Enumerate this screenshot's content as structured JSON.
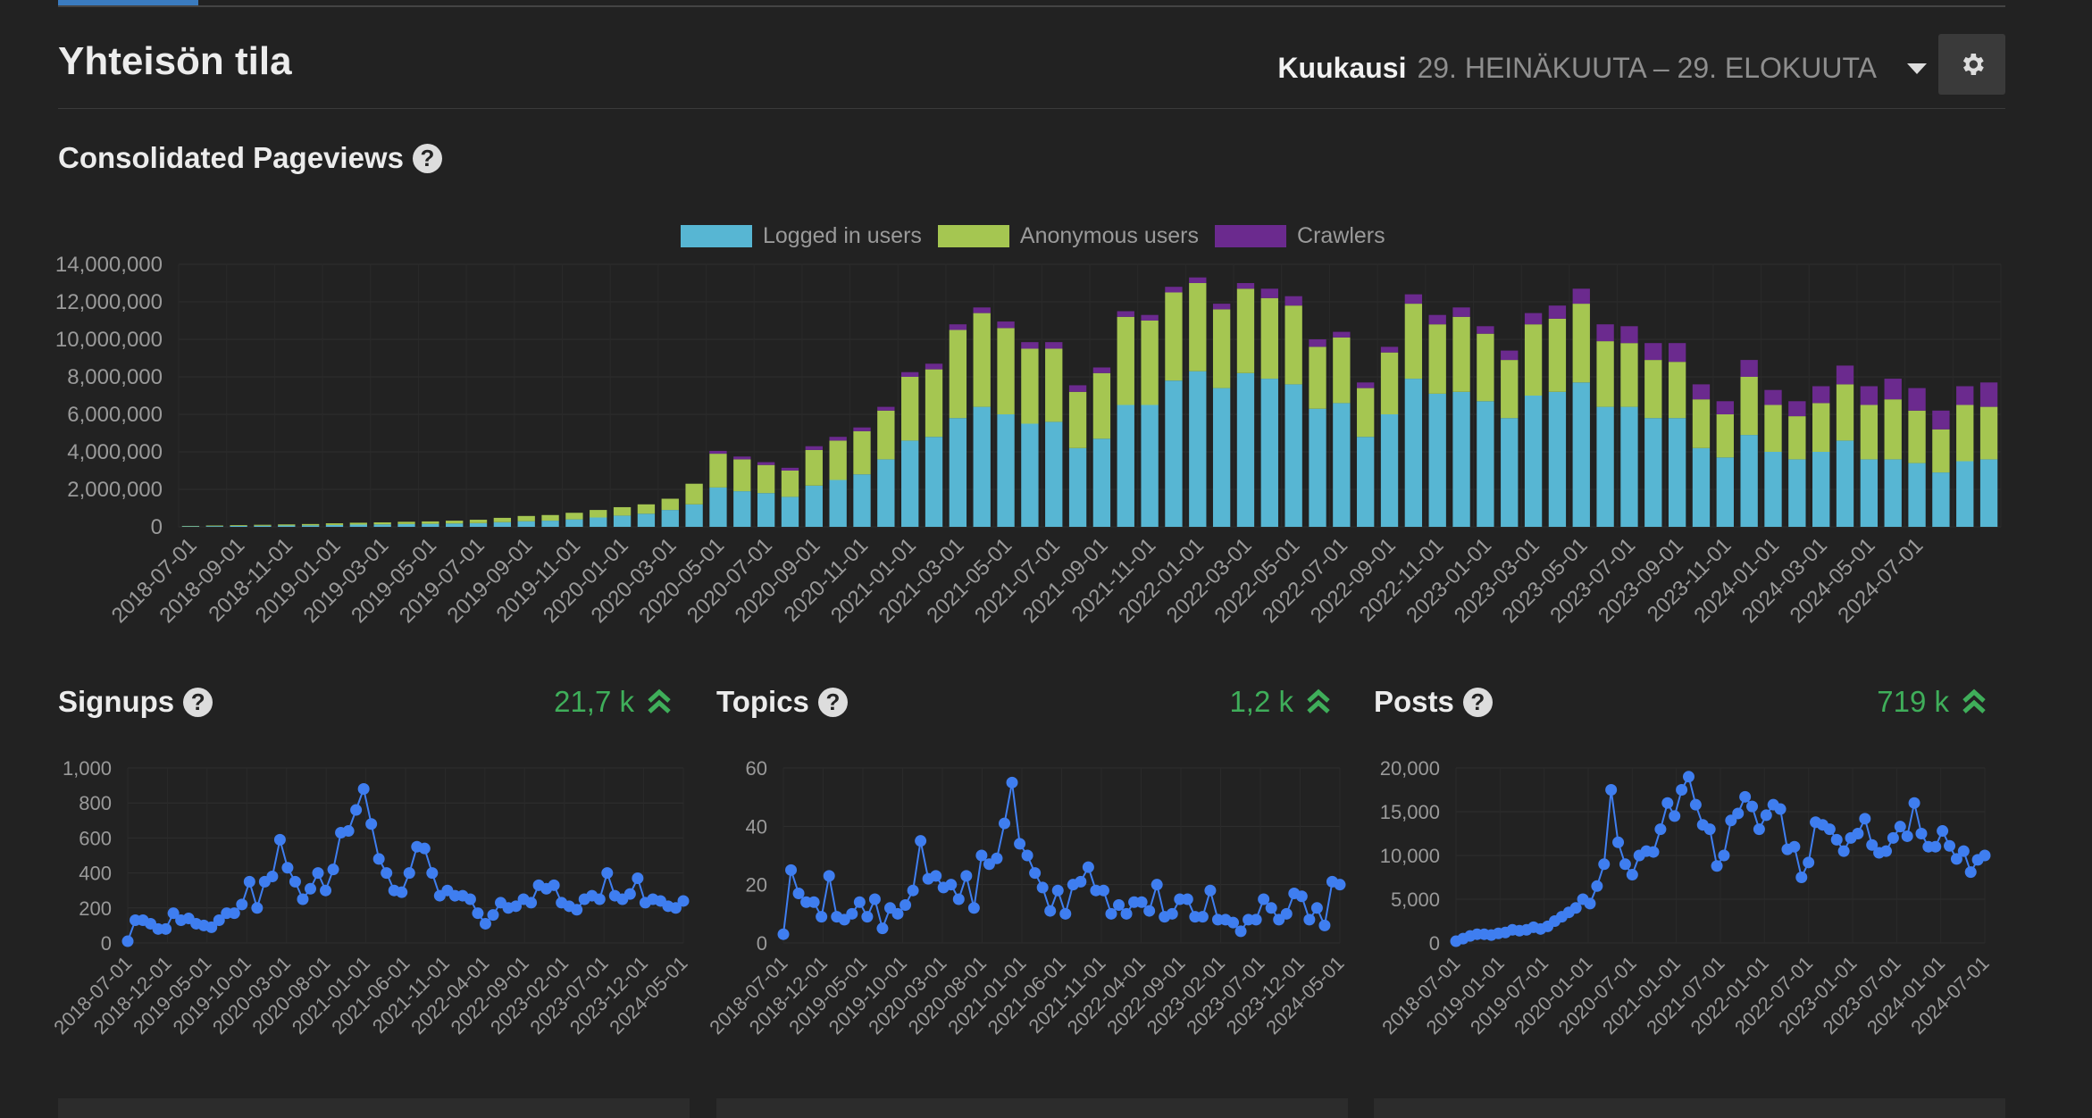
{
  "nav": {
    "active_tab": ""
  },
  "header": {
    "title": "Yhteisön tila",
    "period_label": "Kuukausi",
    "period_range": "29. HEINÄKUUTA – 29. ELOKUUTA",
    "settings_icon": "gear-icon"
  },
  "pageviews": {
    "title": "Consolidated Pageviews",
    "chart_data": {
      "type": "bar",
      "stacked": true,
      "title": "Consolidated Pageviews",
      "legend_position": "top",
      "grid": true,
      "ylim": [
        0,
        14000000
      ],
      "y_ticks": [
        "14,000,000",
        "12,000,000",
        "10,000,000",
        "8,000,000",
        "6,000,000",
        "4,000,000",
        "2,000,000",
        "0"
      ],
      "x_tick_labels": [
        "2018-07-01",
        "2018-09-01",
        "2018-11-01",
        "2019-01-01",
        "2019-03-01",
        "2019-05-01",
        "2019-07-01",
        "2019-09-01",
        "2019-11-01",
        "2020-01-01",
        "2020-03-01",
        "2020-05-01",
        "2020-07-01",
        "2020-09-01",
        "2020-11-01",
        "2021-01-01",
        "2021-03-01",
        "2021-05-01",
        "2021-07-01",
        "2021-09-01",
        "2021-11-01",
        "2022-01-01",
        "2022-03-01",
        "2022-05-01",
        "2022-07-01",
        "2022-09-01",
        "2022-11-01",
        "2023-01-01",
        "2023-03-01",
        "2023-05-01",
        "2023-07-01",
        "2023-09-01",
        "2023-11-01",
        "2024-01-01",
        "2024-03-01",
        "2024-05-01",
        "2024-07-01"
      ],
      "series": [
        {
          "name": "Logged in users",
          "color": "#57b6d3",
          "values": [
            30000,
            40000,
            50000,
            60000,
            70000,
            80000,
            100000,
            120000,
            130000,
            150000,
            160000,
            180000,
            200000,
            250000,
            300000,
            330000,
            400000,
            500000,
            600000,
            700000,
            900000,
            1200000,
            2100000,
            1900000,
            1800000,
            1600000,
            2200000,
            2500000,
            2800000,
            3600000,
            4600000,
            4800000,
            5800000,
            6400000,
            6000000,
            5500000,
            5600000,
            4200000,
            4700000,
            6500000,
            6500000,
            7800000,
            8300000,
            7400000,
            8200000,
            7900000,
            7600000,
            6300000,
            6600000,
            4800000,
            6000000,
            7900000,
            7100000,
            7200000,
            6700000,
            5800000,
            7000000,
            7200000,
            7700000,
            6400000,
            6400000,
            5800000,
            5800000,
            4200000,
            3700000,
            4900000,
            4000000,
            3600000,
            4000000,
            4600000,
            3600000,
            3600000,
            3400000,
            2900000,
            3500000,
            3600000
          ]
        },
        {
          "name": "Anonymous users",
          "color": "#a5c651",
          "values": [
            20000,
            30000,
            40000,
            50000,
            60000,
            70000,
            90000,
            100000,
            110000,
            120000,
            130000,
            150000,
            180000,
            230000,
            280000,
            300000,
            350000,
            400000,
            450000,
            500000,
            600000,
            1100000,
            1800000,
            1700000,
            1500000,
            1400000,
            1900000,
            2100000,
            2300000,
            2600000,
            3400000,
            3600000,
            4700000,
            5000000,
            4600000,
            4000000,
            3900000,
            3000000,
            3500000,
            4700000,
            4500000,
            4700000,
            4700000,
            4200000,
            4500000,
            4300000,
            4200000,
            3300000,
            3500000,
            2600000,
            3300000,
            4000000,
            3700000,
            4000000,
            3600000,
            3100000,
            3800000,
            3900000,
            4200000,
            3500000,
            3400000,
            3100000,
            3000000,
            2600000,
            2300000,
            3100000,
            2500000,
            2300000,
            2600000,
            3000000,
            2900000,
            3200000,
            2800000,
            2300000,
            3000000,
            2800000
          ]
        },
        {
          "name": "Crawlers",
          "color": "#6b2a8e",
          "values": [
            0,
            0,
            0,
            0,
            0,
            0,
            0,
            0,
            0,
            0,
            0,
            0,
            0,
            0,
            0,
            0,
            0,
            0,
            0,
            0,
            0,
            0,
            150000,
            150000,
            150000,
            150000,
            200000,
            200000,
            200000,
            200000,
            250000,
            300000,
            300000,
            300000,
            350000,
            350000,
            350000,
            350000,
            300000,
            300000,
            300000,
            300000,
            300000,
            300000,
            300000,
            500000,
            500000,
            400000,
            300000,
            300000,
            300000,
            500000,
            500000,
            500000,
            400000,
            500000,
            600000,
            700000,
            800000,
            900000,
            900000,
            900000,
            1000000,
            800000,
            700000,
            900000,
            800000,
            800000,
            900000,
            1000000,
            1000000,
            1100000,
            1200000,
            1000000,
            1000000,
            1300000
          ]
        }
      ]
    }
  },
  "signups": {
    "title": "Signups",
    "value": "21,7 k",
    "trend_icon": "double-chevron-up-icon",
    "chart_data": {
      "type": "line",
      "ylim": [
        0,
        1000
      ],
      "y_ticks": [
        "1,000",
        "800",
        "600",
        "400",
        "200",
        "0"
      ],
      "x_tick_labels": [
        "2018-07-01",
        "2018-12-01",
        "2019-05-01",
        "2019-10-01",
        "2020-03-01",
        "2020-08-01",
        "2021-01-01",
        "2021-06-01",
        "2021-11-01",
        "2022-04-01",
        "2022-09-01",
        "2023-02-01",
        "2023-07-01",
        "2023-12-01",
        "2024-05-01"
      ],
      "values": [
        10,
        130,
        130,
        110,
        80,
        80,
        170,
        130,
        140,
        110,
        100,
        90,
        130,
        170,
        170,
        220,
        350,
        200,
        350,
        380,
        590,
        430,
        350,
        250,
        310,
        400,
        300,
        420,
        630,
        640,
        760,
        880,
        680,
        480,
        400,
        300,
        290,
        400,
        550,
        540,
        400,
        270,
        300,
        270,
        270,
        250,
        170,
        110,
        160,
        230,
        200,
        210,
        250,
        230,
        330,
        310,
        330,
        230,
        210,
        190,
        250,
        270,
        250,
        400,
        270,
        250,
        280,
        370,
        230,
        250,
        240,
        210,
        200,
        240
      ]
    }
  },
  "topics": {
    "title": "Topics",
    "value": "1,2 k",
    "trend_icon": "double-chevron-up-icon",
    "chart_data": {
      "type": "line",
      "ylim": [
        0,
        60
      ],
      "y_ticks": [
        "60",
        "40",
        "20",
        "0"
      ],
      "x_tick_labels": [
        "2018-07-01",
        "2018-12-01",
        "2019-05-01",
        "2019-10-01",
        "2020-03-01",
        "2020-08-01",
        "2021-01-01",
        "2021-06-01",
        "2021-11-01",
        "2022-04-01",
        "2022-09-01",
        "2023-02-01",
        "2023-07-01",
        "2023-12-01",
        "2024-05-01"
      ],
      "values": [
        3,
        25,
        17,
        14,
        14,
        9,
        23,
        9,
        8,
        10,
        14,
        9,
        15,
        5,
        12,
        10,
        13,
        18,
        35,
        22,
        23,
        19,
        20,
        15,
        23,
        12,
        30,
        27,
        29,
        41,
        55,
        34,
        30,
        24,
        19,
        11,
        18,
        10,
        20,
        21,
        26,
        18,
        18,
        10,
        13,
        10,
        14,
        14,
        11,
        20,
        9,
        10,
        15,
        15,
        9,
        9,
        18,
        8,
        8,
        7,
        4,
        8,
        8,
        15,
        12,
        8,
        10,
        17,
        16,
        8,
        12,
        6,
        21,
        20
      ]
    }
  },
  "posts": {
    "title": "Posts",
    "value": "719 k",
    "trend_icon": "double-chevron-up-icon",
    "chart_data": {
      "type": "line",
      "ylim": [
        0,
        20000
      ],
      "y_ticks": [
        "20,000",
        "15,000",
        "10,000",
        "5,000",
        "0"
      ],
      "x_tick_labels": [
        "2018-07-01",
        "2019-01-01",
        "2019-07-01",
        "2020-01-01",
        "2020-07-01",
        "2021-01-01",
        "2021-07-01",
        "2022-01-01",
        "2022-07-01",
        "2023-01-01",
        "2023-07-01",
        "2024-01-01",
        "2024-07-01"
      ],
      "values": [
        200,
        500,
        800,
        1000,
        1000,
        900,
        1100,
        1200,
        1500,
        1400,
        1500,
        1800,
        1600,
        1900,
        2500,
        3000,
        3500,
        4000,
        5000,
        4500,
        6500,
        9000,
        17500,
        11500,
        9000,
        7800,
        10000,
        10500,
        10400,
        13000,
        16000,
        14500,
        17500,
        19000,
        15800,
        13500,
        13000,
        8800,
        10000,
        14000,
        14800,
        16700,
        15600,
        13000,
        14600,
        15800,
        15300,
        10700,
        11000,
        7500,
        9200,
        13800,
        13500,
        13000,
        11800,
        10500,
        12000,
        12500,
        14200,
        11200,
        10300,
        10500,
        12000,
        13300,
        12200,
        16000,
        12500,
        11000,
        11000,
        12800,
        11100,
        9600,
        10500,
        8100,
        9500,
        10000
      ]
    }
  }
}
